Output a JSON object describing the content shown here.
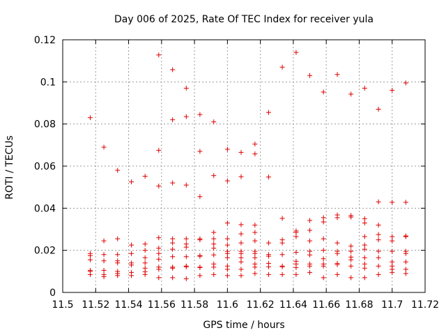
{
  "chart_data": {
    "type": "scatter",
    "title": "Day 006 of 2025, Rate Of TEC Index for receiver yula",
    "xlabel": "GPS time / hours",
    "ylabel": "ROTI / TECUs",
    "xlim": [
      11.5,
      11.72
    ],
    "ylim": [
      0,
      0.12
    ],
    "x_ticks": [
      11.5,
      11.52,
      11.54,
      11.56,
      11.58,
      11.6,
      11.62,
      11.64,
      11.66,
      11.68,
      11.7,
      11.72
    ],
    "y_ticks": [
      0,
      0.02,
      0.04,
      0.06,
      0.08,
      0.1,
      0.12
    ],
    "x_tick_labels": [
      "11.5",
      "11.52",
      "11.54",
      "11.56",
      "11.58",
      "11.6",
      "11.62",
      "11.64",
      "11.66",
      "11.68",
      "11.7",
      "11.72"
    ],
    "y_tick_labels": [
      "0",
      "0.02",
      "0.04",
      "0.06",
      "0.08",
      "0.1",
      "0.12"
    ],
    "grid": true,
    "marker": "plus",
    "color": "#e00000",
    "series": [
      {
        "name": "ROTI",
        "points": [
          [
            11.5167,
            0.083
          ],
          [
            11.5167,
            0.0185
          ],
          [
            11.5167,
            0.0175
          ],
          [
            11.5167,
            0.0155
          ],
          [
            11.5167,
            0.0105
          ],
          [
            11.5167,
            0.01
          ],
          [
            11.5167,
            0.0085
          ],
          [
            11.525,
            0.069
          ],
          [
            11.525,
            0.0245
          ],
          [
            11.525,
            0.018
          ],
          [
            11.525,
            0.015
          ],
          [
            11.525,
            0.0105
          ],
          [
            11.525,
            0.0085
          ],
          [
            11.525,
            0.0075
          ],
          [
            11.5333,
            0.058
          ],
          [
            11.5333,
            0.0255
          ],
          [
            11.5333,
            0.018
          ],
          [
            11.5333,
            0.015
          ],
          [
            11.5333,
            0.014
          ],
          [
            11.5333,
            0.01
          ],
          [
            11.5333,
            0.009
          ],
          [
            11.5333,
            0.008
          ],
          [
            11.5417,
            0.0525
          ],
          [
            11.5417,
            0.0225
          ],
          [
            11.5417,
            0.0185
          ],
          [
            11.5417,
            0.014
          ],
          [
            11.5417,
            0.013
          ],
          [
            11.5417,
            0.0095
          ],
          [
            11.5417,
            0.008
          ],
          [
            11.55,
            0.0552
          ],
          [
            11.55,
            0.023
          ],
          [
            11.55,
            0.02
          ],
          [
            11.55,
            0.0165
          ],
          [
            11.55,
            0.014
          ],
          [
            11.55,
            0.0115
          ],
          [
            11.55,
            0.0098
          ],
          [
            11.55,
            0.0085
          ],
          [
            11.5583,
            0.1128
          ],
          [
            11.5583,
            0.0675
          ],
          [
            11.5583,
            0.0505
          ],
          [
            11.5583,
            0.026
          ],
          [
            11.5583,
            0.021
          ],
          [
            11.5583,
            0.0185
          ],
          [
            11.5583,
            0.0158
          ],
          [
            11.5583,
            0.012
          ],
          [
            11.5583,
            0.011
          ],
          [
            11.5583,
            0.007
          ],
          [
            11.5667,
            0.1058
          ],
          [
            11.5667,
            0.082
          ],
          [
            11.5667,
            0.052
          ],
          [
            11.5667,
            0.0255
          ],
          [
            11.5667,
            0.0235
          ],
          [
            11.5667,
            0.0205
          ],
          [
            11.5667,
            0.017
          ],
          [
            11.5667,
            0.012
          ],
          [
            11.5667,
            0.0115
          ],
          [
            11.5667,
            0.007
          ],
          [
            11.575,
            0.097
          ],
          [
            11.575,
            0.0835
          ],
          [
            11.575,
            0.051
          ],
          [
            11.575,
            0.0255
          ],
          [
            11.575,
            0.023
          ],
          [
            11.575,
            0.0215
          ],
          [
            11.575,
            0.017
          ],
          [
            11.575,
            0.0125
          ],
          [
            11.575,
            0.0122
          ],
          [
            11.575,
            0.0065
          ],
          [
            11.5833,
            0.0845
          ],
          [
            11.5833,
            0.067
          ],
          [
            11.5833,
            0.0455
          ],
          [
            11.5833,
            0.0255
          ],
          [
            11.5833,
            0.025
          ],
          [
            11.5833,
            0.0175
          ],
          [
            11.5833,
            0.0172
          ],
          [
            11.5833,
            0.012
          ],
          [
            11.5833,
            0.0118
          ],
          [
            11.5833,
            0.008
          ],
          [
            11.5917,
            0.081
          ],
          [
            11.5917,
            0.0555
          ],
          [
            11.5917,
            0.0285
          ],
          [
            11.5917,
            0.0255
          ],
          [
            11.5917,
            0.023
          ],
          [
            11.5917,
            0.021
          ],
          [
            11.5917,
            0.0178
          ],
          [
            11.5917,
            0.0135
          ],
          [
            11.5917,
            0.012
          ],
          [
            11.5917,
            0.0085
          ],
          [
            11.6,
            0.068
          ],
          [
            11.6,
            0.053
          ],
          [
            11.6,
            0.033
          ],
          [
            11.6,
            0.0255
          ],
          [
            11.6,
            0.0225
          ],
          [
            11.6,
            0.0195
          ],
          [
            11.6,
            0.0185
          ],
          [
            11.6,
            0.0165
          ],
          [
            11.6,
            0.0125
          ],
          [
            11.6,
            0.011
          ],
          [
            11.6,
            0.008
          ],
          [
            11.6083,
            0.0665
          ],
          [
            11.6083,
            0.055
          ],
          [
            11.6083,
            0.0322
          ],
          [
            11.6083,
            0.0278
          ],
          [
            11.6083,
            0.0235
          ],
          [
            11.6083,
            0.0195
          ],
          [
            11.6083,
            0.0185
          ],
          [
            11.6083,
            0.0165
          ],
          [
            11.6083,
            0.0145
          ],
          [
            11.6083,
            0.011
          ],
          [
            11.6083,
            0.008
          ],
          [
            11.6167,
            0.0705
          ],
          [
            11.6167,
            0.0658
          ],
          [
            11.6167,
            0.032
          ],
          [
            11.6167,
            0.0285
          ],
          [
            11.6167,
            0.0245
          ],
          [
            11.6167,
            0.0195
          ],
          [
            11.6167,
            0.0185
          ],
          [
            11.6167,
            0.0165
          ],
          [
            11.6167,
            0.0135
          ],
          [
            11.6167,
            0.012
          ],
          [
            11.6167,
            0.009
          ],
          [
            11.625,
            0.0855
          ],
          [
            11.625,
            0.0548
          ],
          [
            11.625,
            0.0235
          ],
          [
            11.625,
            0.018
          ],
          [
            11.625,
            0.0172
          ],
          [
            11.625,
            0.0138
          ],
          [
            11.625,
            0.0122
          ],
          [
            11.625,
            0.0085
          ],
          [
            11.6333,
            0.107
          ],
          [
            11.6333,
            0.0352
          ],
          [
            11.6333,
            0.025
          ],
          [
            11.6333,
            0.0235
          ],
          [
            11.6333,
            0.018
          ],
          [
            11.6333,
            0.0125
          ],
          [
            11.6333,
            0.0122
          ],
          [
            11.6333,
            0.0085
          ],
          [
            11.6417,
            0.114
          ],
          [
            11.6417,
            0.0292
          ],
          [
            11.6417,
            0.0285
          ],
          [
            11.6417,
            0.0265
          ],
          [
            11.6417,
            0.019
          ],
          [
            11.6417,
            0.0148
          ],
          [
            11.6417,
            0.0135
          ],
          [
            11.6417,
            0.0118
          ],
          [
            11.6417,
            0.0085
          ],
          [
            11.65,
            0.103
          ],
          [
            11.65,
            0.0342
          ],
          [
            11.65,
            0.0295
          ],
          [
            11.65,
            0.0245
          ],
          [
            11.65,
            0.0195
          ],
          [
            11.65,
            0.0178
          ],
          [
            11.65,
            0.0135
          ],
          [
            11.65,
            0.0125
          ],
          [
            11.65,
            0.0095
          ],
          [
            11.6583,
            0.0952
          ],
          [
            11.6583,
            0.0355
          ],
          [
            11.6583,
            0.0335
          ],
          [
            11.6583,
            0.0255
          ],
          [
            11.6583,
            0.02
          ],
          [
            11.6583,
            0.016
          ],
          [
            11.6583,
            0.0135
          ],
          [
            11.6583,
            0.0125
          ],
          [
            11.6583,
            0.007
          ],
          [
            11.6667,
            0.1035
          ],
          [
            11.6667,
            0.0368
          ],
          [
            11.6667,
            0.0355
          ],
          [
            11.6667,
            0.0235
          ],
          [
            11.6667,
            0.0195
          ],
          [
            11.6667,
            0.0185
          ],
          [
            11.6667,
            0.0138
          ],
          [
            11.6667,
            0.0132
          ],
          [
            11.6667,
            0.0085
          ],
          [
            11.675,
            0.0942
          ],
          [
            11.675,
            0.0365
          ],
          [
            11.675,
            0.0358
          ],
          [
            11.675,
            0.022
          ],
          [
            11.675,
            0.0195
          ],
          [
            11.675,
            0.0168
          ],
          [
            11.675,
            0.0155
          ],
          [
            11.675,
            0.0125
          ],
          [
            11.675,
            0.007
          ],
          [
            11.6833,
            0.097
          ],
          [
            11.6833,
            0.035
          ],
          [
            11.6833,
            0.033
          ],
          [
            11.6833,
            0.0265
          ],
          [
            11.6833,
            0.0225
          ],
          [
            11.6833,
            0.0205
          ],
          [
            11.6833,
            0.0165
          ],
          [
            11.6833,
            0.0135
          ],
          [
            11.6833,
            0.0115
          ],
          [
            11.6833,
            0.007
          ],
          [
            11.6917,
            0.087
          ],
          [
            11.6917,
            0.043
          ],
          [
            11.6917,
            0.032
          ],
          [
            11.6917,
            0.0275
          ],
          [
            11.6917,
            0.025
          ],
          [
            11.6917,
            0.0195
          ],
          [
            11.6917,
            0.0165
          ],
          [
            11.6917,
            0.0125
          ],
          [
            11.6917,
            0.0085
          ],
          [
            11.7,
            0.096
          ],
          [
            11.7,
            0.0428
          ],
          [
            11.7,
            0.0265
          ],
          [
            11.7,
            0.0245
          ],
          [
            11.7,
            0.0195
          ],
          [
            11.7,
            0.0145
          ],
          [
            11.7,
            0.0125
          ],
          [
            11.7,
            0.011
          ],
          [
            11.7,
            0.0095
          ],
          [
            11.7083,
            0.0995
          ],
          [
            11.7083,
            0.0428
          ],
          [
            11.7083,
            0.0268
          ],
          [
            11.7083,
            0.0265
          ],
          [
            11.7083,
            0.0195
          ],
          [
            11.7083,
            0.0185
          ],
          [
            11.7083,
            0.0145
          ],
          [
            11.7083,
            0.011
          ],
          [
            11.7083,
            0.009
          ]
        ]
      }
    ]
  }
}
